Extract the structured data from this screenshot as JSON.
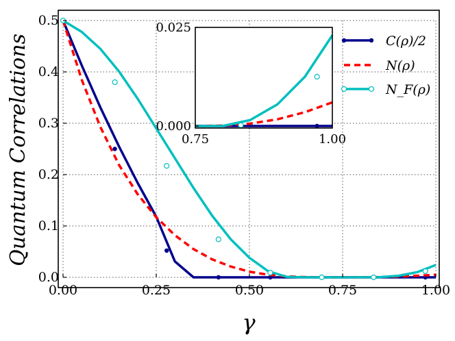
{
  "chart_data": [
    {
      "type": "line",
      "title": "",
      "xlabel": "γ",
      "ylabel": "Quantum Correlations",
      "xlim": [
        0.0,
        1.0
      ],
      "ylim": [
        0.0,
        0.5
      ],
      "x_ticks": [
        "0.00",
        "0.25",
        "0.50",
        "0.75",
        "1.00"
      ],
      "y_ticks": [
        "0.0",
        "0.1",
        "0.2",
        "0.3",
        "0.4",
        "0.5"
      ],
      "grid": true,
      "legend_position": "top-right",
      "x": [
        0.0,
        0.05,
        0.1,
        0.15,
        0.2,
        0.25,
        0.3,
        0.35,
        0.4,
        0.45,
        0.5,
        0.55,
        0.6,
        0.65,
        0.7,
        0.75,
        0.8,
        0.85,
        0.9,
        0.95,
        1.0
      ],
      "series": [
        {
          "name": "C(ρ)/2",
          "color": "#00008b",
          "style": "solid-dot",
          "values": [
            0.5,
            0.413,
            0.331,
            0.255,
            0.184,
            0.118,
            0.031,
            0.0,
            0.0,
            0.0,
            0.0,
            0.0,
            0.0,
            0.0,
            0.0,
            0.0,
            0.0,
            0.0,
            0.0,
            0.0,
            0.0
          ],
          "markers_x": [
            0.0,
            0.139,
            0.278,
            0.417,
            0.556,
            0.694,
            0.833,
            0.972
          ],
          "markers_y": [
            0.5,
            0.25,
            0.052,
            0.0,
            0.0,
            0.0,
            0.0,
            0.0
          ]
        },
        {
          "name": "N(ρ)",
          "color": "#ff0000",
          "style": "dashed",
          "values": [
            0.5,
            0.385,
            0.293,
            0.219,
            0.162,
            0.117,
            0.082,
            0.055,
            0.035,
            0.021,
            0.011,
            0.005,
            0.002,
            0.0005,
            0.0,
            0.0,
            0.0,
            0.0006,
            0.0015,
            0.003,
            0.005
          ]
        },
        {
          "name": "N_F(ρ)",
          "color": "#00bfbf",
          "style": "solid-open-circle",
          "values": [
            0.5,
            0.478,
            0.445,
            0.401,
            0.348,
            0.29,
            0.232,
            0.174,
            0.12,
            0.074,
            0.038,
            0.012,
            0.001,
            0.0,
            0.0,
            0.0,
            0.0,
            0.0003,
            0.003,
            0.01,
            0.024
          ],
          "markers_x": [
            0.0,
            0.139,
            0.278,
            0.417,
            0.556,
            0.694,
            0.833,
            0.972
          ],
          "markers_y": [
            0.5,
            0.38,
            0.217,
            0.074,
            0.009,
            0.0,
            0.0,
            0.012
          ]
        }
      ]
    },
    {
      "type": "line",
      "title": "",
      "xlabel": "",
      "ylabel": "",
      "xlim": [
        0.75,
        1.0
      ],
      "ylim": [
        0.0,
        0.025
      ],
      "x_ticks": [
        "0.75",
        "1.00"
      ],
      "y_ticks": [
        "0.000",
        "0.025"
      ],
      "grid": true,
      "x": [
        0.75,
        0.8,
        0.85,
        0.9,
        0.95,
        1.0
      ],
      "series": [
        {
          "color": "#00008b",
          "values": [
            0.0,
            0.0,
            0.0,
            0.0,
            0.0,
            0.0
          ],
          "markers_x": [
            0.833,
            0.972
          ],
          "markers_y": [
            0.0,
            0.0
          ]
        },
        {
          "color": "#ff0000",
          "values": [
            0.0,
            0.0001,
            0.0006,
            0.0017,
            0.0035,
            0.006
          ]
        },
        {
          "color": "#00bfbf",
          "values": [
            0.0,
            0.0,
            0.0015,
            0.0055,
            0.0125,
            0.023
          ],
          "markers_x": [
            0.833,
            0.972
          ],
          "markers_y": [
            0.0002,
            0.0125
          ]
        }
      ]
    }
  ]
}
